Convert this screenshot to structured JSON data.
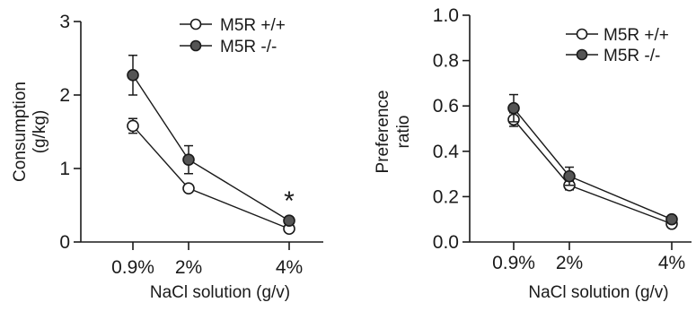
{
  "chart_data": [
    {
      "type": "line",
      "title": "",
      "xlabel": "NaCl solution (g/v)",
      "ylabel": "Consumption (g/kg)",
      "ylabel_lines": [
        "Consumption",
        "(g/kg)"
      ],
      "categories": [
        "0.9%",
        "2%",
        "4%"
      ],
      "x": [
        0.9,
        2,
        4
      ],
      "xlim": [
        0,
        4.4
      ],
      "ylim": [
        0,
        3
      ],
      "yticks": [
        0,
        1,
        2,
        3
      ],
      "ytick_labels": [
        "0",
        "1",
        "2",
        "3"
      ],
      "grid": false,
      "legend_position": "top-right",
      "series": [
        {
          "name": "M5R +/+",
          "marker": "open-circle",
          "values": [
            1.58,
            0.73,
            0.18
          ],
          "error": [
            0.1,
            0.04,
            0.03
          ]
        },
        {
          "name": "M5R -/-",
          "marker": "filled-circle",
          "values": [
            2.27,
            1.12,
            0.29
          ],
          "error": [
            0.27,
            0.19,
            0.05
          ]
        }
      ],
      "annotations": [
        {
          "text": "*",
          "x": 4
        }
      ]
    },
    {
      "type": "line",
      "title": "",
      "xlabel": "NaCl solution (g/v)",
      "ylabel": "Preference ratio",
      "ylabel_lines": [
        "Preference",
        "ratio"
      ],
      "categories": [
        "0.9%",
        "2%",
        "4%"
      ],
      "x": [
        0.9,
        2,
        4
      ],
      "xlim": [
        0,
        4.4
      ],
      "ylim": [
        0,
        1
      ],
      "yticks": [
        0,
        0.2,
        0.4,
        0.6,
        0.8,
        1.0
      ],
      "ytick_labels": [
        "0.0",
        "0.2",
        "0.4",
        "0.6",
        "0.8",
        "1.0"
      ],
      "grid": false,
      "legend_position": "top-right",
      "series": [
        {
          "name": "M5R +/+",
          "marker": "open-circle",
          "values": [
            0.54,
            0.25,
            0.08
          ],
          "error": [
            0.03,
            0.02,
            0.01
          ]
        },
        {
          "name": "M5R -/-",
          "marker": "filled-circle",
          "values": [
            0.59,
            0.29,
            0.1
          ],
          "error": [
            0.06,
            0.04,
            0.01
          ]
        }
      ],
      "annotations": []
    }
  ]
}
